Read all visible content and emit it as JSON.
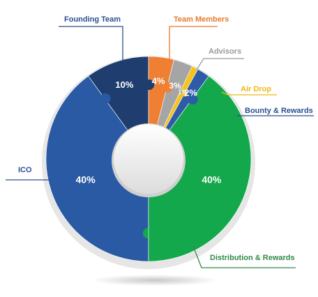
{
  "chart_data": {
    "type": "pie",
    "variant": "donut",
    "categories": [
      "ICO",
      "Founding Team",
      "Team Members",
      "Advisors",
      "Air Drop",
      "Bounty & Rewards",
      "Distribution & Rewards"
    ],
    "values": [
      40,
      10,
      4,
      3,
      1,
      2,
      40
    ],
    "value_labels": [
      "40%",
      "10%",
      "4%",
      "3%",
      "1%",
      "2%",
      "40%"
    ],
    "colors": [
      "#2b5aa5",
      "#1f3e6f",
      "#ee7f33",
      "#a5a5a5",
      "#f7c21b",
      "#2d5ba8",
      "#12a84b"
    ],
    "label_colors": [
      "#2b4f8f",
      "#2b4f8f",
      "#ea7a2c",
      "#9a9a9a",
      "#eeb713",
      "#2b4f8f",
      "#2f8a46"
    ],
    "title": ""
  }
}
